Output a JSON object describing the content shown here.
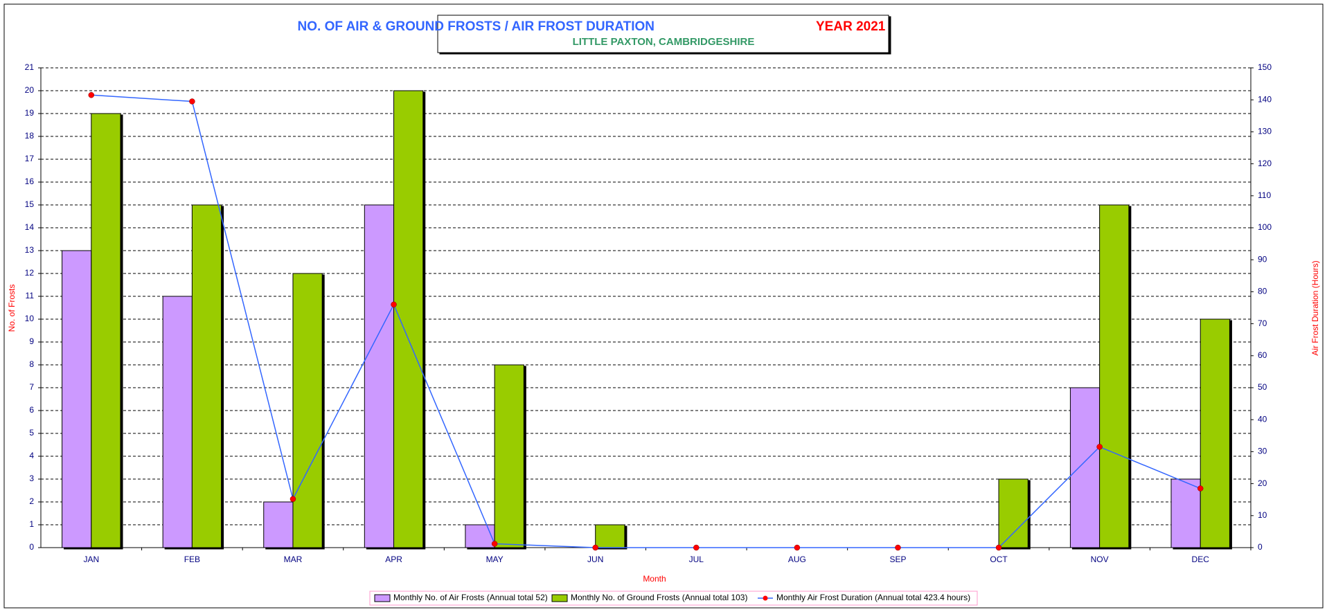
{
  "chart_data": {
    "type": "bar-line",
    "title": "NO. OF AIR & GROUND FROSTS / AIR FROST DURATION",
    "title_year": "YEAR 2021",
    "subtitle": "LITTLE PAXTON, CAMBRIDGESHIRE",
    "x_label": "Month",
    "y_label": "No. of Frosts",
    "y2_label": "Air Frost Duration (Hours)",
    "categories": [
      "JAN",
      "FEB",
      "MAR",
      "APR",
      "MAY",
      "JUN",
      "JUL",
      "AUG",
      "SEP",
      "OCT",
      "NOV",
      "DEC"
    ],
    "series": [
      {
        "name": "Monthly No. of Air Frosts (Annual total 52)",
        "type": "bar",
        "color": "#cc99ff",
        "values": [
          13,
          11,
          2,
          15,
          1,
          0,
          0,
          0,
          0,
          0,
          7,
          3
        ]
      },
      {
        "name": "Monthly No. of Ground Frosts (Annual total 103)",
        "type": "bar",
        "color": "#99cc00",
        "values": [
          19,
          15,
          12,
          20,
          8,
          1,
          0,
          0,
          0,
          3,
          15,
          10
        ]
      },
      {
        "name": "Monthly Air Frost Duration (Annual total 423.4 hours)",
        "type": "line",
        "axis": "y2",
        "color": "#3366ff",
        "marker_color": "#ff0000",
        "values": [
          141.5,
          139.5,
          15.2,
          76,
          1.2,
          0,
          0,
          0,
          0,
          0,
          31.5,
          18.5
        ]
      }
    ],
    "ylim": [
      0,
      21
    ],
    "yticks": [
      0,
      1,
      2,
      3,
      4,
      5,
      6,
      7,
      8,
      9,
      10,
      11,
      12,
      13,
      14,
      15,
      16,
      17,
      18,
      19,
      20,
      21
    ],
    "y2lim": [
      0,
      150
    ],
    "y2ticks": [
      0,
      10,
      20,
      30,
      40,
      50,
      60,
      70,
      80,
      90,
      100,
      110,
      120,
      130,
      140,
      150
    ],
    "grid": true,
    "legend": "bottom"
  }
}
